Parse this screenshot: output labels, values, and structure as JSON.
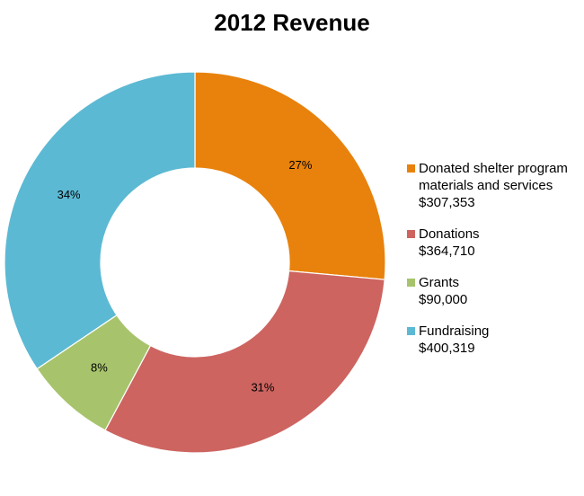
{
  "chart_data": {
    "type": "pie",
    "variant": "donut",
    "title": "2012 Revenue",
    "slices": [
      {
        "label": "Donated shelter program materials and services",
        "value_label": "$307,353",
        "value": 307353,
        "percent_label": "27%",
        "color": "#E8820C"
      },
      {
        "label": "Donations",
        "value_label": "$364,710",
        "value": 364710,
        "percent_label": "31%",
        "color": "#CD6460"
      },
      {
        "label": "Grants",
        "value_label": "$90,000",
        "value": 90000,
        "percent_label": "8%",
        "color": "#A7C46C"
      },
      {
        "label": "Fundraising",
        "value_label": "$400,319",
        "value": 400319,
        "percent_label": "34%",
        "color": "#5CB9D3"
      }
    ],
    "start_angle_deg": 0,
    "direction": "clockwise",
    "legend_position": "right"
  }
}
